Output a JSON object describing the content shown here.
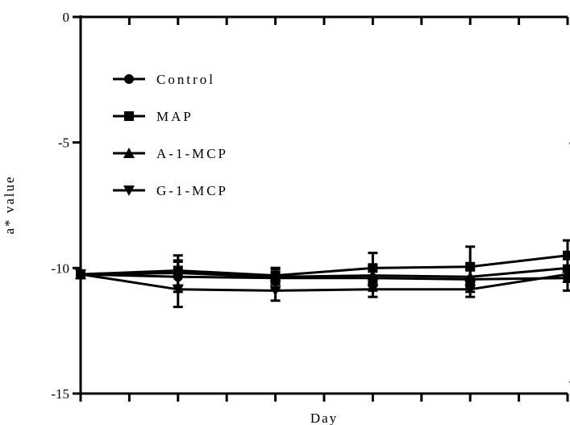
{
  "chart_data": {
    "type": "line",
    "xlabel": "Day",
    "ylabel": "a* value",
    "ylim": [
      -15,
      0
    ],
    "yticks": [
      -15,
      -10,
      -5,
      0
    ],
    "ytick_labels": [
      "-15",
      "-10",
      "-5",
      "0"
    ],
    "x_points": [
      0,
      1,
      2,
      3,
      4,
      5
    ],
    "x_minor_ticks": [
      0.5,
      1.5,
      2.5,
      3.5,
      4.5
    ],
    "xlim": [
      0,
      5
    ],
    "grid": false,
    "legend_position": "top-left",
    "series": [
      {
        "name": "Control",
        "marker": "circle",
        "values": [
          -10.25,
          -10.35,
          -10.4,
          -10.4,
          -10.45,
          -10.4
        ],
        "errors": [
          0.15,
          0.6,
          0.4,
          0.5,
          0.5,
          0.5
        ]
      },
      {
        "name": "MAP",
        "marker": "square",
        "values": [
          -10.25,
          -10.1,
          -10.3,
          -10.0,
          -9.95,
          -9.5
        ],
        "errors": [
          0.15,
          0.6,
          0.3,
          0.6,
          0.8,
          0.6
        ]
      },
      {
        "name": "A-1-MCP",
        "marker": "triangle-up",
        "values": [
          -10.25,
          -10.2,
          -10.35,
          -10.3,
          -10.35,
          -10.0
        ],
        "errors": [
          0.15,
          0.5,
          0.3,
          0.4,
          0.3,
          0.4
        ]
      },
      {
        "name": "G-1-MCP",
        "marker": "triangle-down",
        "values": [
          -10.25,
          -10.85,
          -10.9,
          -10.85,
          -10.85,
          -10.25
        ],
        "errors": [
          0.15,
          0.7,
          0.4,
          0.3,
          0.3,
          0.3
        ]
      }
    ],
    "annotations": [
      ".",
      "."
    ]
  }
}
